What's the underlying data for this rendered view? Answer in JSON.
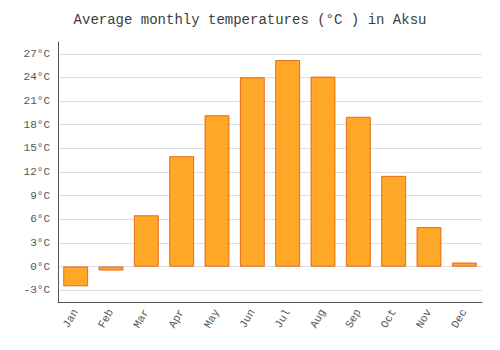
{
  "chart_data": {
    "type": "bar",
    "title": "Average monthly temperatures (°C ) in Aksu",
    "categories": [
      "Jan",
      "Feb",
      "Mar",
      "Apr",
      "May",
      "Jun",
      "Jul",
      "Aug",
      "Sep",
      "Oct",
      "Nov",
      "Dec"
    ],
    "values": [
      -2.5,
      -0.5,
      6.5,
      14.0,
      19.2,
      24.0,
      26.2,
      24.1,
      19.0,
      11.5,
      5.0,
      0.5
    ],
    "color": "#FFA726",
    "ylim": [
      -4.5,
      28.5
    ],
    "yticks": [
      {
        "value": -3,
        "label": "-3°C"
      },
      {
        "value": 0,
        "label": "0°C"
      },
      {
        "value": 3,
        "label": "3°C"
      },
      {
        "value": 6,
        "label": "6°C"
      },
      {
        "value": 9,
        "label": "9°C"
      },
      {
        "value": 12,
        "label": "12°C"
      },
      {
        "value": 15,
        "label": "15°C"
      },
      {
        "value": 18,
        "label": "18°C"
      },
      {
        "value": 21,
        "label": "21°C"
      },
      {
        "value": 24,
        "label": "24°C"
      },
      {
        "value": 27,
        "label": "27°C"
      }
    ],
    "grid": true
  }
}
